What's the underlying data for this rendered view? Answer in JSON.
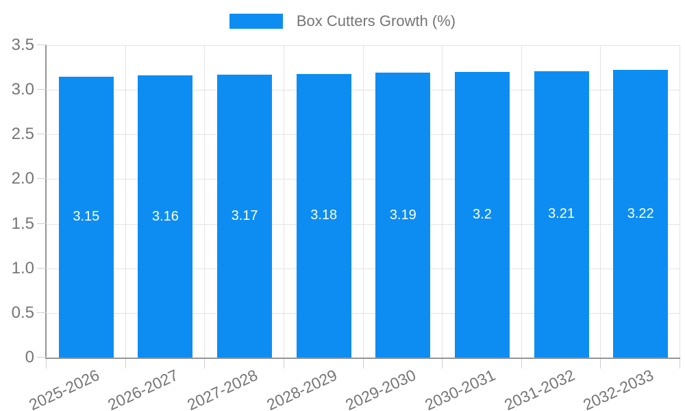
{
  "legend": {
    "label": "Box Cutters Growth (%)"
  },
  "chart_data": {
    "type": "bar",
    "title": "",
    "series_name": "Box Cutters Growth (%)",
    "categories": [
      "2025-2026",
      "2026-2027",
      "2027-2028",
      "2028-2029",
      "2029-2030",
      "2030-2031",
      "2031-2032",
      "2032-2033"
    ],
    "values": [
      3.15,
      3.16,
      3.17,
      3.18,
      3.19,
      3.2,
      3.21,
      3.22
    ],
    "value_labels": [
      "3.15",
      "3.16",
      "3.17",
      "3.18",
      "3.19",
      "3.2",
      "3.21",
      "3.22"
    ],
    "xlabel": "",
    "ylabel": "",
    "ylim": [
      0,
      3.5
    ],
    "yticks": [
      {
        "value": 0,
        "label": "0"
      },
      {
        "value": 0.5,
        "label": "0.5"
      },
      {
        "value": 1,
        "label": "1.0"
      },
      {
        "value": 1.5,
        "label": "1.5"
      },
      {
        "value": 2,
        "label": "2.0"
      },
      {
        "value": 2.5,
        "label": "2.5"
      },
      {
        "value": 3,
        "label": "3.0"
      },
      {
        "value": 3.5,
        "label": "3.5"
      }
    ],
    "grid": true,
    "legend_position": "top",
    "value_labels_position": "inside-center",
    "colors": {
      "bar": "#0d8df2",
      "grid": "#e3e3e3",
      "axis": "#949494",
      "tick": "#cfcfcf",
      "label_text": "#757575",
      "value_text": "#ffffff",
      "background": "#ffffff"
    }
  }
}
